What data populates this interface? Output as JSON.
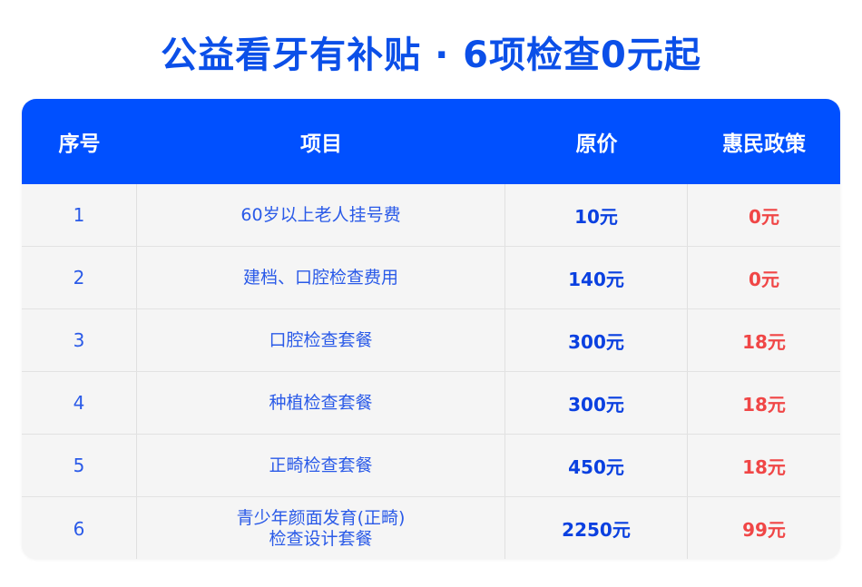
{
  "title": "公益看牙有补贴 · 6项检查0元起",
  "table": {
    "headers": [
      "序号",
      "项目",
      "原价",
      "惠民政策"
    ],
    "rows": [
      {
        "no": "1",
        "item": "60岁以上老人挂号费",
        "price": "10元",
        "policy": "0元"
      },
      {
        "no": "2",
        "item": "建档、口腔检查费用",
        "price": "140元",
        "policy": "0元"
      },
      {
        "no": "3",
        "item": "口腔检查套餐",
        "price": "300元",
        "policy": "18元"
      },
      {
        "no": "4",
        "item": "种植检查套餐",
        "price": "300元",
        "policy": "18元"
      },
      {
        "no": "5",
        "item": "正畸检查套餐",
        "price": "450元",
        "policy": "18元"
      },
      {
        "no": "6",
        "item": "青少年颜面发育(正畸)\n检查设计套餐",
        "price": "2250元",
        "policy": "99元"
      }
    ]
  },
  "colors": {
    "header_bg": "#0050ff",
    "title": "#0b4fe8",
    "price": "#0a40e0",
    "policy": "#f04646",
    "text": "#2a5ae8"
  }
}
